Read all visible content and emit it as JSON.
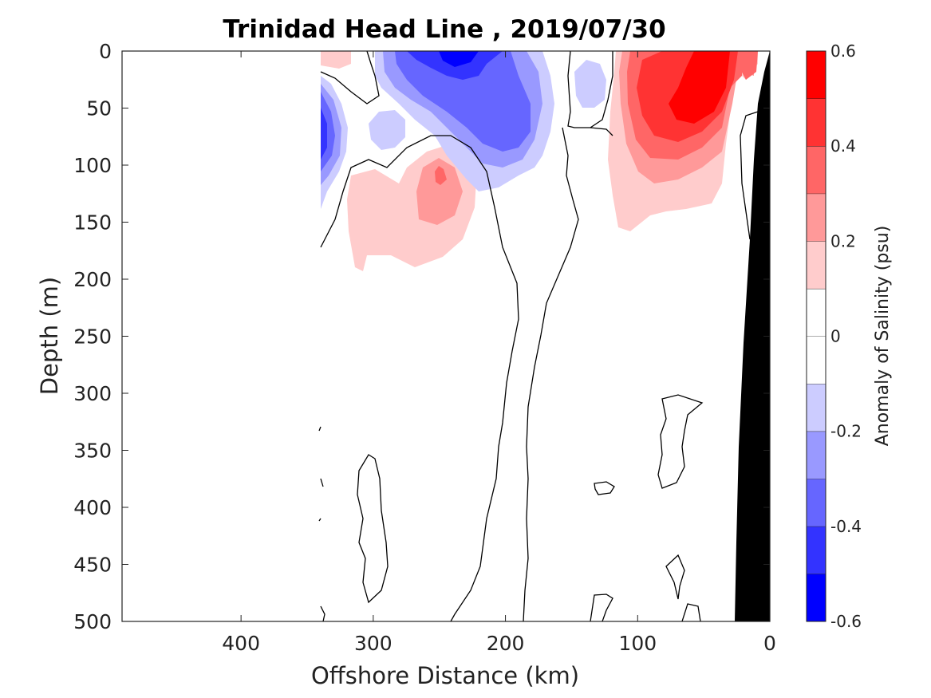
{
  "chart_data": {
    "type": "heatmap",
    "subtype": "filled-contour-section",
    "title": "Trinidad Head Line , 2019/07/30",
    "xlabel": "Offshore Distance (km)",
    "ylabel": "Depth (m)",
    "xlim": [
      490,
      0
    ],
    "ylim": [
      0,
      500
    ],
    "x_reversed": true,
    "y_reversed": true,
    "xticks": [
      400,
      300,
      200,
      100,
      0
    ],
    "xtick_labels": [
      "400",
      "300",
      "200",
      "100",
      "0"
    ],
    "yticks": [
      0,
      50,
      100,
      150,
      200,
      250,
      300,
      350,
      400,
      450,
      500
    ],
    "ytick_labels": [
      "0",
      "50",
      "100",
      "150",
      "200",
      "250",
      "300",
      "350",
      "400",
      "450",
      "500"
    ],
    "colorbar": {
      "label": "Anomaly of Salinity (psu)",
      "range": [
        -0.6,
        0.6
      ],
      "levels": [
        -0.6,
        -0.5,
        -0.4,
        -0.3,
        -0.2,
        -0.1,
        0,
        0.1,
        0.2,
        0.3,
        0.4,
        0.5,
        0.6
      ],
      "tick_values": [
        0.6,
        0.4,
        0.2,
        0,
        -0.2,
        -0.4,
        -0.6
      ],
      "tick_labels": [
        "0.6",
        "0.4",
        "0.2",
        "0",
        "-0.2",
        "-0.4",
        "-0.6"
      ],
      "colors": [
        "#0000ff",
        "#3333ff",
        "#6666ff",
        "#9999ff",
        "#ccccff",
        "#ffffff",
        "#ffffff",
        "#ffcccc",
        "#ff9999",
        "#ff6666",
        "#ff3333",
        "#ff0000"
      ]
    },
    "features": [
      {
        "kind": "negative-anomaly",
        "center_km": 240,
        "center_depth_m": 10,
        "peak": -0.55
      },
      {
        "kind": "negative-anomaly",
        "center_km": 336,
        "center_depth_m": 70,
        "peak": -0.5
      },
      {
        "kind": "negative-anomaly",
        "center_km": 205,
        "center_depth_m": 70,
        "peak": -0.35
      },
      {
        "kind": "positive-anomaly",
        "center_km": 50,
        "center_depth_m": 40,
        "peak": 0.55
      },
      {
        "kind": "positive-anomaly",
        "center_km": 250,
        "center_depth_m": 110,
        "peak": 0.35
      },
      {
        "kind": "positive-anomaly",
        "center_km": 290,
        "center_depth_m": 150,
        "peak": 0.15
      }
    ],
    "data_extent_km": [
      0,
      340
    ],
    "bathymetry_color": "#000000"
  }
}
